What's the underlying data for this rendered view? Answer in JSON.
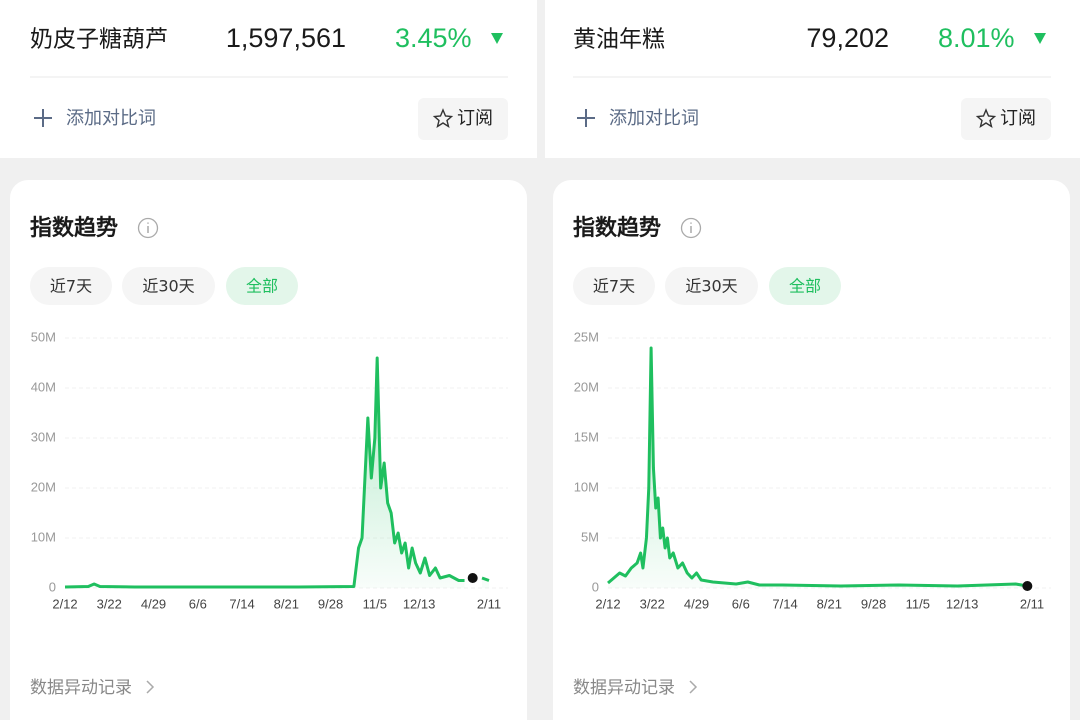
{
  "panels": [
    {
      "keyword": "奶皮子糖葫芦",
      "index": "1,597,561",
      "change": "3.45%",
      "add_compare": "添加对比词",
      "subscribe": "订阅",
      "section_title": "指数趋势",
      "ranges": [
        "近7天",
        "近30天",
        "全部"
      ],
      "footer": "数据异动记录",
      "chart": {
        "type": "line",
        "color": "#1fbf5f",
        "grid": true,
        "x": [
          0,
          20,
          25,
          30,
          60,
          100,
          150,
          200,
          248,
          252,
          255,
          260,
          263,
          266,
          268,
          271,
          274,
          277,
          280,
          283,
          286,
          289,
          292,
          295,
          298,
          301,
          305,
          309,
          313,
          318,
          322,
          330,
          338,
          343,
          346,
          358,
          364
        ],
        "values": [
          0.2,
          0.3,
          0.8,
          0.3,
          0.2,
          0.2,
          0.2,
          0.2,
          0.3,
          8,
          10,
          34,
          22,
          30,
          46,
          20,
          25,
          17,
          15,
          9,
          11,
          7,
          9,
          4,
          8,
          5,
          3,
          6,
          2.5,
          4,
          2,
          2.5,
          1.5,
          1.5,
          null,
          2,
          1.5
        ],
        "marker": {
          "x": 350,
          "value": 2
        },
        "xlim": [
          0,
          364
        ],
        "xticks": [
          {
            "value": 0,
            "label": "2/12"
          },
          {
            "value": 38,
            "label": "3/22"
          },
          {
            "value": 76,
            "label": "4/29"
          },
          {
            "value": 114,
            "label": "6/6"
          },
          {
            "value": 152,
            "label": "7/14"
          },
          {
            "value": 190,
            "label": "8/21"
          },
          {
            "value": 228,
            "label": "9/28"
          },
          {
            "value": 266,
            "label": "11/5"
          },
          {
            "value": 304,
            "label": "12/13"
          },
          {
            "value": 364,
            "label": "2/11"
          }
        ],
        "ylim": [
          0,
          50
        ],
        "yticks": [
          0,
          {
            "value": 10,
            "label": "10M"
          },
          {
            "value": 20,
            "label": "20M"
          },
          {
            "value": 30,
            "label": "30M"
          },
          {
            "value": 40,
            "label": "40M"
          },
          {
            "value": 50,
            "label": "50M"
          }
        ]
      }
    },
    {
      "keyword": "黄油年糕",
      "index": "79,202",
      "change": "8.01%",
      "add_compare": "添加对比词",
      "subscribe": "订阅",
      "section_title": "指数趋势",
      "ranges": [
        "近7天",
        "近30天",
        "全部"
      ],
      "footer": "数据异动记录",
      "chart": {
        "type": "line",
        "color": "#1fbf5f",
        "grid": true,
        "x": [
          0,
          5,
          10,
          15,
          20,
          25,
          28,
          30,
          33,
          35,
          37,
          39,
          41,
          43,
          45,
          47,
          49,
          51,
          53,
          56,
          60,
          64,
          68,
          72,
          76,
          80,
          90,
          100,
          110,
          120,
          130,
          150,
          200,
          250,
          300,
          350,
          360
        ],
        "values": [
          0.5,
          1,
          1.5,
          1.2,
          2,
          2.5,
          3.5,
          2,
          5,
          10,
          24,
          12,
          8,
          9,
          5,
          6,
          4,
          5,
          3,
          3.5,
          2,
          2.5,
          1.5,
          1,
          1.5,
          0.8,
          0.6,
          0.5,
          0.4,
          0.6,
          0.3,
          0.3,
          0.2,
          0.3,
          0.2,
          0.4,
          0.2
        ],
        "marker": {
          "x": 360,
          "value": 0.2
        },
        "xlim": [
          0,
          364
        ],
        "xticks": [
          {
            "value": 0,
            "label": "2/12"
          },
          {
            "value": 38,
            "label": "3/22"
          },
          {
            "value": 76,
            "label": "4/29"
          },
          {
            "value": 114,
            "label": "6/6"
          },
          {
            "value": 152,
            "label": "7/14"
          },
          {
            "value": 190,
            "label": "8/21"
          },
          {
            "value": 228,
            "label": "9/28"
          },
          {
            "value": 266,
            "label": "11/5"
          },
          {
            "value": 304,
            "label": "12/13"
          },
          {
            "value": 364,
            "label": "2/11"
          }
        ],
        "ylim": [
          0,
          25
        ],
        "yticks": [
          0,
          {
            "value": 5,
            "label": "5M"
          },
          {
            "value": 10,
            "label": "10M"
          },
          {
            "value": 15,
            "label": "15M"
          },
          {
            "value": 20,
            "label": "20M"
          },
          {
            "value": 25,
            "label": "25M"
          }
        ]
      }
    }
  ]
}
